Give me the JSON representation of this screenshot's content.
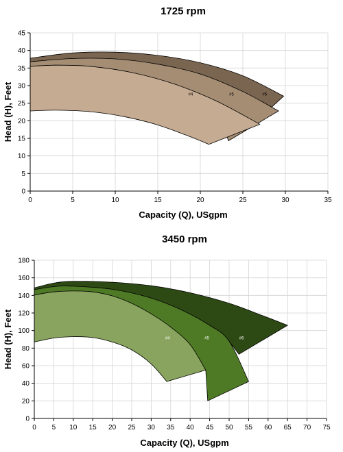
{
  "chart_data": [
    {
      "type": "area",
      "title": "1725 rpm",
      "xlabel": "Capacity (Q), USgpm",
      "ylabel": "Head (H), Feet",
      "xlim": [
        0,
        35
      ],
      "ylim": [
        0,
        45
      ],
      "xticks": [
        0,
        5,
        10,
        15,
        20,
        25,
        30,
        35
      ],
      "yticks": [
        0,
        5,
        10,
        15,
        20,
        25,
        30,
        35,
        40,
        45
      ],
      "grid": true,
      "series": [
        {
          "name": "#6",
          "color": "#7a6550",
          "upper": [
            [
              0,
              37.8
            ],
            [
              5,
              39.3
            ],
            [
              10,
              39.5
            ],
            [
              15,
              38.6
            ],
            [
              20,
              36.5
            ],
            [
              25,
              32.8
            ],
            [
              29.8,
              27.0
            ]
          ],
          "end": [
            [
              29.8,
              27.0
            ],
            [
              25.5,
              17.5
            ]
          ]
        },
        {
          "name": "#5",
          "color": "#a58d74",
          "upper": [
            [
              0,
              36.8
            ],
            [
              5,
              37.7
            ],
            [
              10,
              37.6
            ],
            [
              15,
              36.1
            ],
            [
              20,
              33.3
            ],
            [
              25,
              28.3
            ],
            [
              29.2,
              22.8
            ]
          ],
          "end": [
            [
              29.2,
              22.8
            ],
            [
              23.3,
              14.3
            ]
          ]
        },
        {
          "name": "#4",
          "color": "#c4ab91",
          "upper": [
            [
              0,
              35.5
            ],
            [
              3,
              35.8
            ],
            [
              7,
              35.5
            ],
            [
              12,
              33.7
            ],
            [
              17,
              30.4
            ],
            [
              22,
              25.5
            ],
            [
              27,
              19.0
            ]
          ],
          "lower": [
            [
              0,
              22.8
            ],
            [
              3,
              23.0
            ],
            [
              7,
              22.6
            ],
            [
              11,
              21.2
            ],
            [
              15,
              18.8
            ],
            [
              19,
              15.3
            ],
            [
              21,
              13.3
            ]
          ],
          "end": [
            [
              27,
              19.0
            ],
            [
              21,
              13.3
            ]
          ]
        }
      ],
      "band_labels": [
        {
          "text": "#4",
          "x": 18.6,
          "y": 27.2
        },
        {
          "text": "#5",
          "x": 23.4,
          "y": 27.2
        },
        {
          "text": "#6",
          "x": 27.3,
          "y": 27.2
        }
      ]
    },
    {
      "type": "area",
      "title": "3450 rpm",
      "xlabel": "Capacity (Q), USgpm",
      "ylabel": "Head (H), Feet",
      "xlim": [
        0,
        75
      ],
      "ylim": [
        0,
        180
      ],
      "xticks": [
        0,
        5,
        10,
        15,
        20,
        25,
        30,
        35,
        40,
        45,
        50,
        55,
        60,
        65,
        70,
        75
      ],
      "yticks": [
        0,
        20,
        40,
        60,
        80,
        100,
        120,
        140,
        160,
        180
      ],
      "grid": true,
      "series": [
        {
          "name": "#6",
          "color": "#2e4a14",
          "upper": [
            [
              0,
              148.5
            ],
            [
              5,
              154
            ],
            [
              10,
              156
            ],
            [
              20,
              155
            ],
            [
              30,
              151
            ],
            [
              40,
              143
            ],
            [
              50,
              131
            ],
            [
              58,
              118
            ],
            [
              65,
              106
            ]
          ],
          "end": [
            [
              65,
              106
            ],
            [
              52.5,
              73
            ]
          ]
        },
        {
          "name": "#5",
          "color": "#4e7a25",
          "upper": [
            [
              0,
              146.5
            ],
            [
              5,
              150
            ],
            [
              10,
              150.5
            ],
            [
              20,
              147
            ],
            [
              30,
              137
            ],
            [
              38,
              123
            ],
            [
              45,
              106
            ],
            [
              50,
              88
            ],
            [
              55,
              42
            ]
          ],
          "end": [
            [
              55,
              42
            ],
            [
              44.5,
              20
            ]
          ]
        },
        {
          "name": "#4",
          "color": "#88a45e",
          "upper": [
            [
              0,
              140.5
            ],
            [
              5,
              144
            ],
            [
              10,
              145
            ],
            [
              15,
              144
            ],
            [
              20,
              139.5
            ],
            [
              25,
              131
            ],
            [
              30,
              119
            ],
            [
              35,
              104
            ],
            [
              40,
              84
            ],
            [
              44,
              55
            ]
          ],
          "lower": [
            [
              0,
              87
            ],
            [
              5,
              91.5
            ],
            [
              10,
              93
            ],
            [
              15,
              92
            ],
            [
              20,
              87
            ],
            [
              25,
              78
            ],
            [
              30,
              62
            ],
            [
              34,
              42
            ]
          ],
          "end": [
            [
              44,
              55
            ],
            [
              34,
              42
            ]
          ]
        }
      ],
      "band_labels": [
        {
          "text": "#4",
          "x": 33.6,
          "y": 90
        },
        {
          "text": "#5",
          "x": 43.7,
          "y": 90
        },
        {
          "text": "#6",
          "x": 52.6,
          "y": 90
        }
      ]
    }
  ]
}
